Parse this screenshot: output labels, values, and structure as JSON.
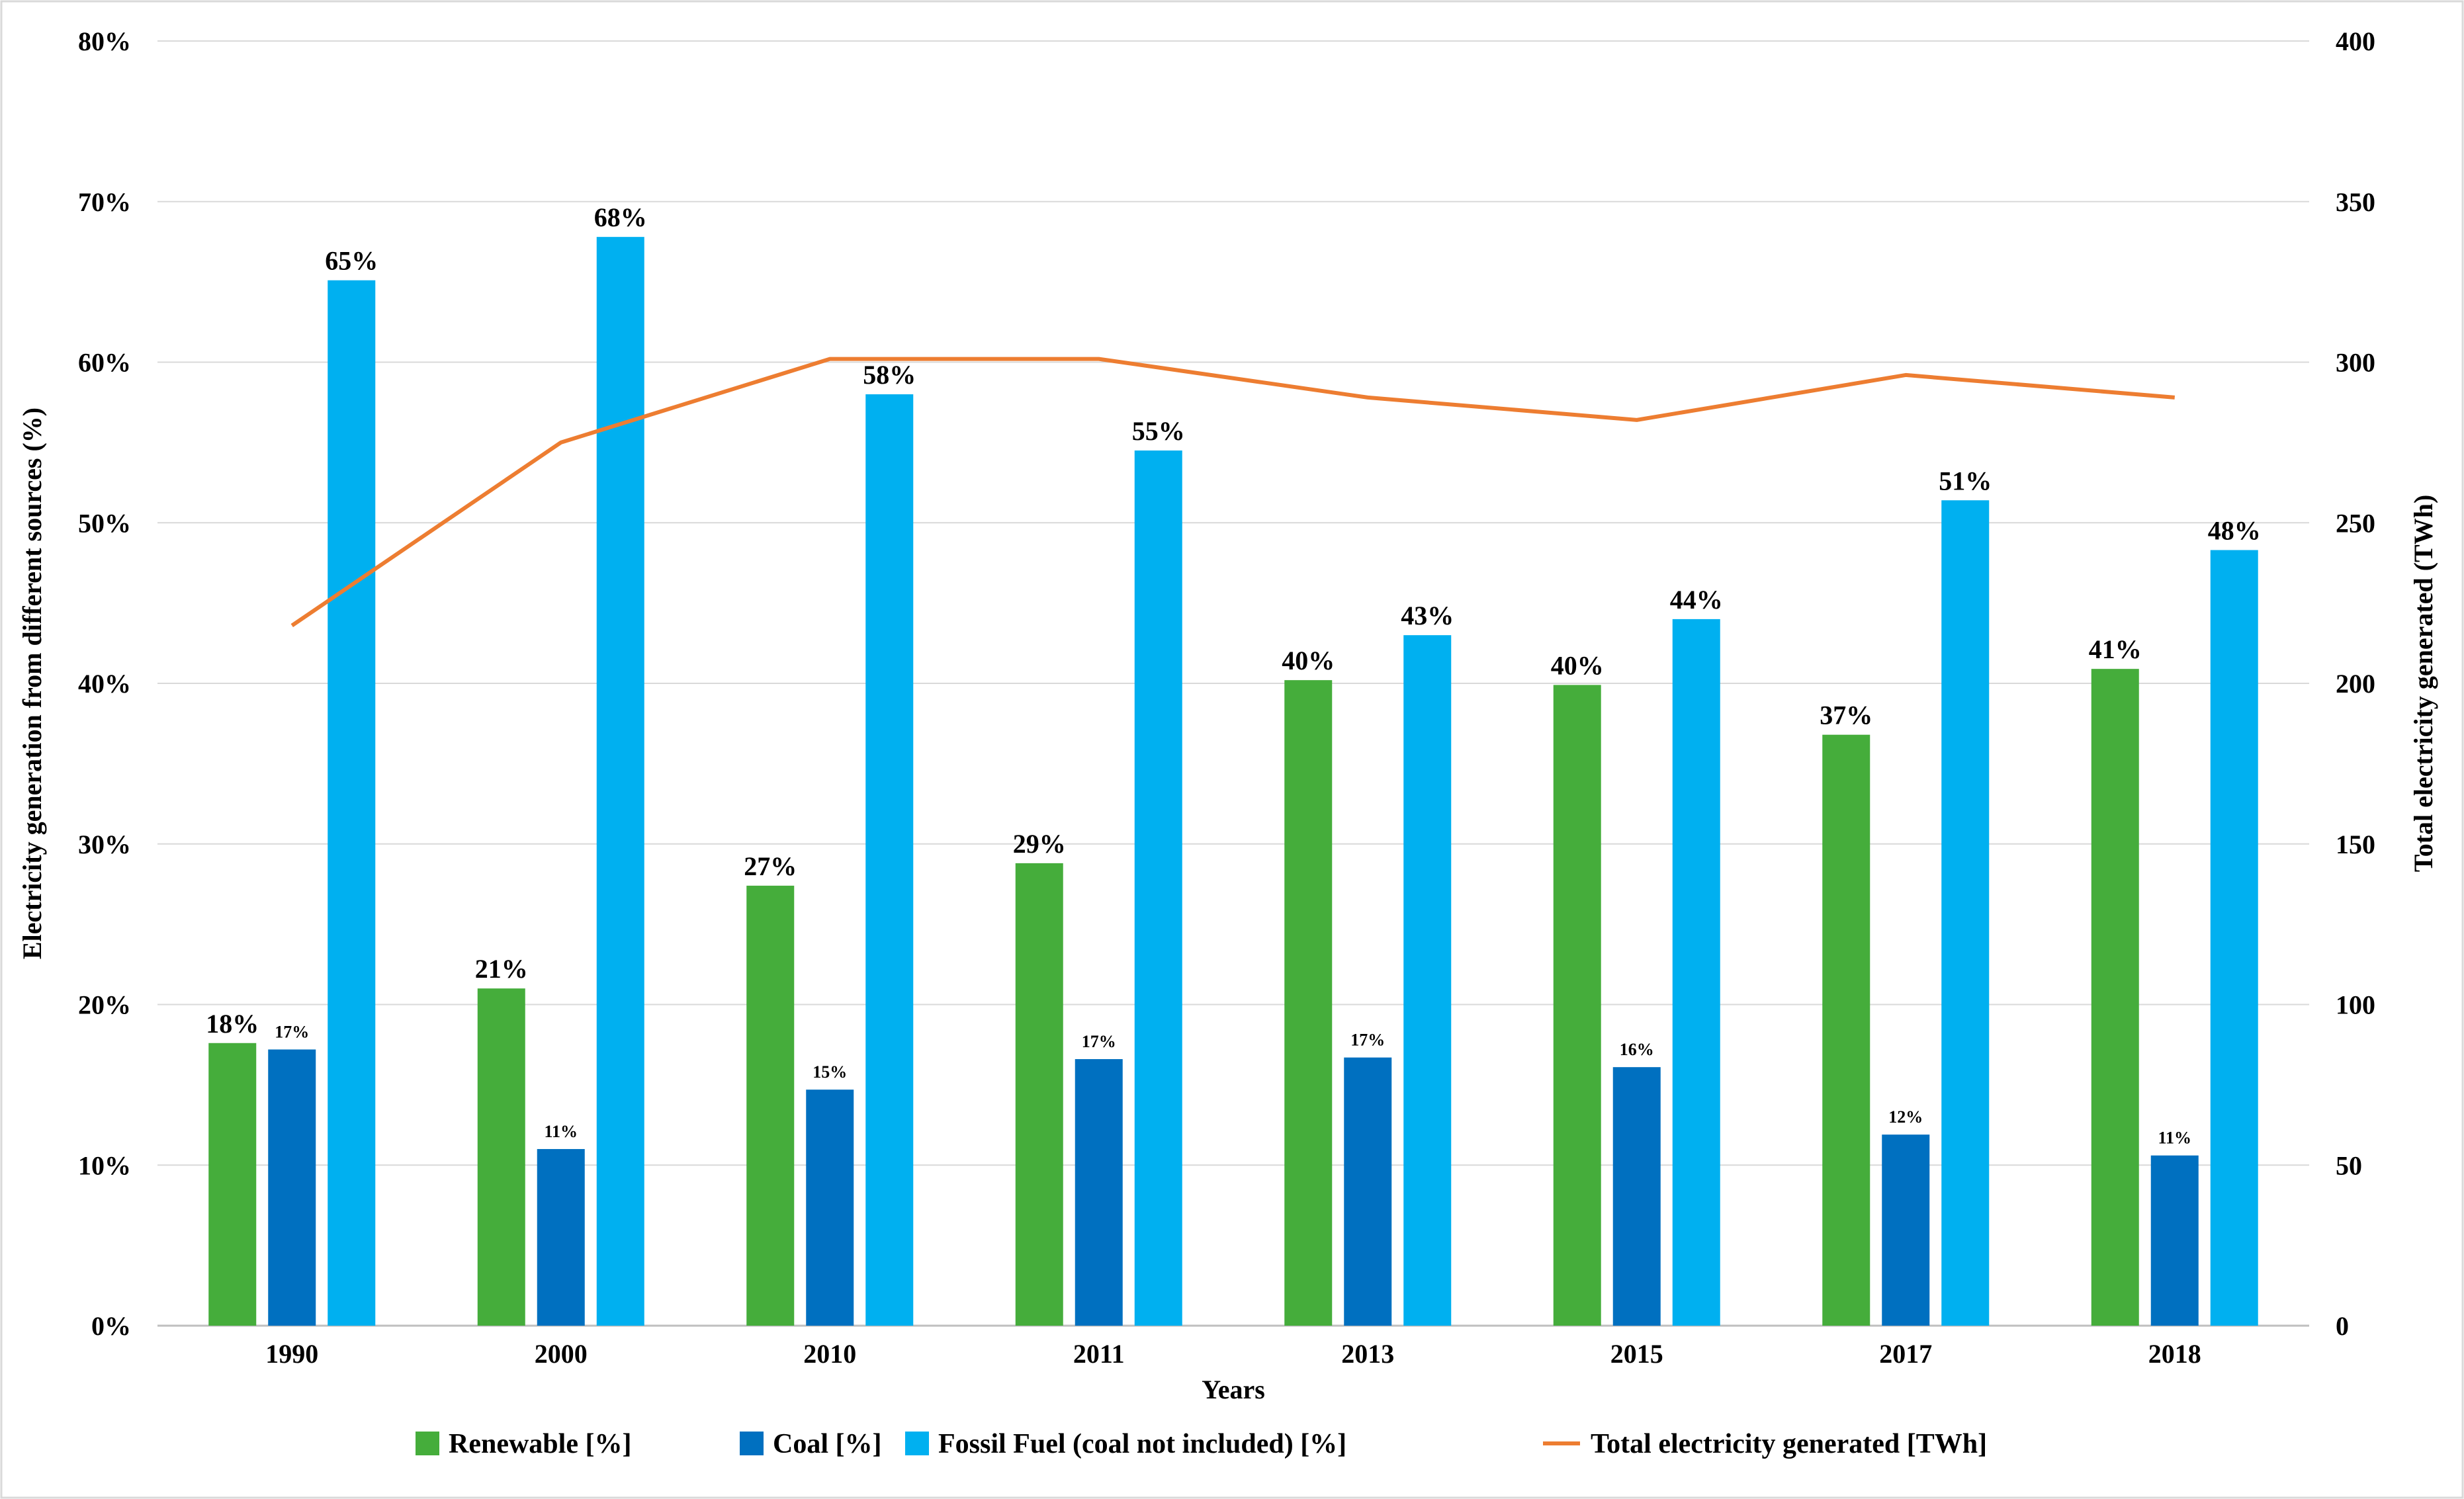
{
  "chart_data": {
    "type": "bar",
    "categories": [
      "1990",
      "2000",
      "2010",
      "2011",
      "2013",
      "2015",
      "2017",
      "2018"
    ],
    "series": [
      {
        "name": "Renewable  [%]",
        "color": "#45AD3B",
        "axis": "left",
        "values": [
          17.6,
          21.0,
          27.4,
          28.8,
          40.2,
          39.9,
          36.8,
          40.9
        ],
        "labels": [
          "18%",
          "21%",
          "27%",
          "29%",
          "40%",
          "40%",
          "37%",
          "41%"
        ]
      },
      {
        "name": "Coal [%]",
        "color": "#0070C0",
        "axis": "left",
        "values": [
          17.2,
          11.0,
          14.7,
          16.6,
          16.7,
          16.1,
          11.9,
          10.6
        ],
        "labels": [
          "17%",
          "11%",
          "15%",
          "17%",
          "17%",
          "16%",
          "12%",
          "11%"
        ]
      },
      {
        "name": "Fossil Fuel (coal not included) [%]",
        "color": "#00B0F0",
        "axis": "left",
        "values": [
          65.1,
          67.8,
          58.0,
          54.5,
          43.0,
          44.0,
          51.4,
          48.3
        ],
        "labels": [
          "65%",
          "68%",
          "58%",
          "55%",
          "43%",
          "44%",
          "51%",
          "48%"
        ]
      },
      {
        "name": "Total electricity generated [TWh]",
        "color": "#ED7D31",
        "axis": "right",
        "type": "line",
        "values": [
          218,
          275,
          301,
          301,
          289,
          282,
          296,
          289
        ]
      }
    ],
    "xlabel": "Years",
    "ylabel": "Electricity generation  from different sources  (%)",
    "y2label": "Total electricity generated (TWh)",
    "ylim": [
      0,
      80
    ],
    "y2lim": [
      0,
      400
    ],
    "yticks": [
      "0%",
      "10%",
      "20%",
      "30%",
      "40%",
      "50%",
      "60%",
      "70%",
      "80%"
    ],
    "y2ticks": [
      "0",
      "50",
      "100",
      "150",
      "200",
      "250",
      "300",
      "350",
      "400"
    ],
    "grid": true,
    "legend": "bottom"
  }
}
